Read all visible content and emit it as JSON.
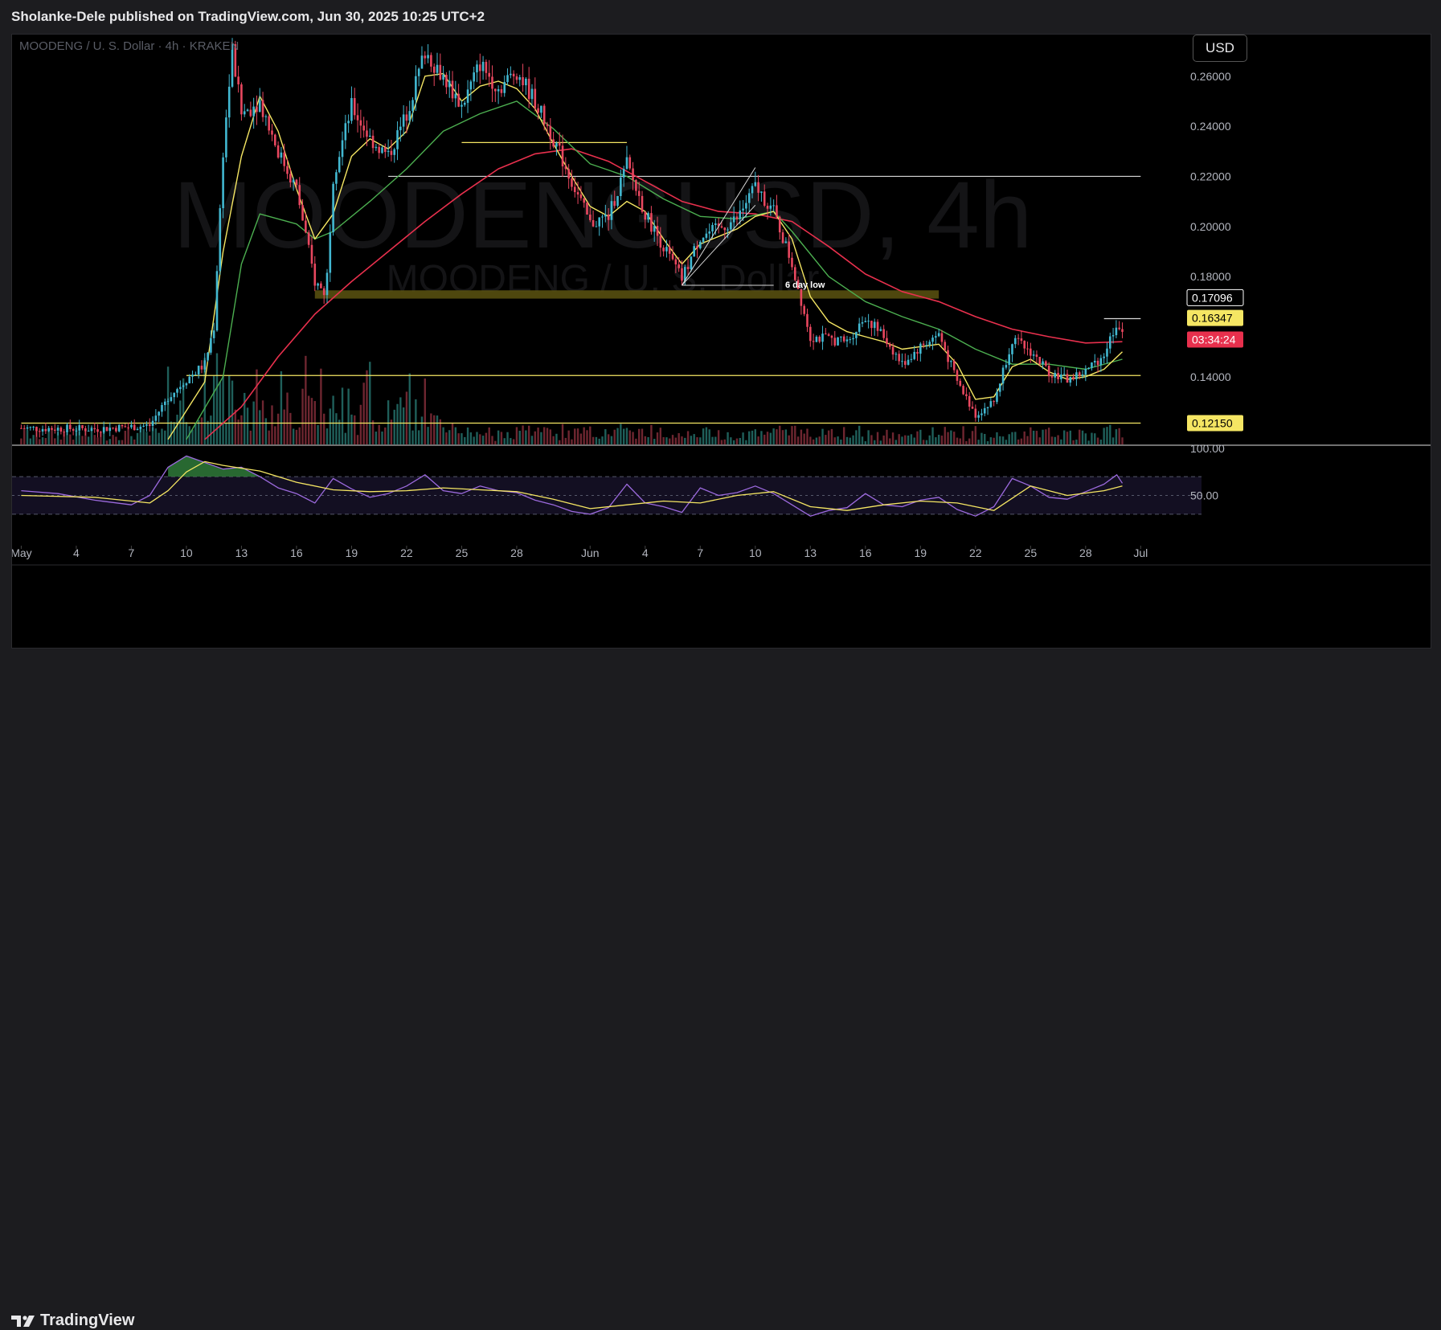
{
  "header": {
    "published_text": "Sholanke-Dele published on TradingView.com, Jun 30, 2025 10:25 UTC+2"
  },
  "footer": {
    "brand": "TradingView"
  },
  "toolbar": {
    "currency_label": "USD"
  },
  "symbol": {
    "title": "MOODENG / U. S. Dollar · 4h · KRAKEN",
    "watermark_main": "MOODENGUSD, 4h",
    "watermark_sub": "MOODENG / U. S. Dollar"
  },
  "colors": {
    "up": "#26a69a",
    "up_body": "#42b8d1",
    "down": "#e8475f",
    "ma_fast": "#f5e663",
    "ma_mid": "#4caf50",
    "ma_slow": "#e8304d",
    "rsi": "#9c6ade",
    "rsi_ma": "#f5e663",
    "level_line": "#f5e663",
    "white_line": "#d8d8d8"
  },
  "chart_data": [
    {
      "type": "candlestick",
      "title": "MOODENG / U. S. Dollar · 4h · KRAKEN",
      "x_start": "2025-05-01",
      "x_end": "2025-06-30",
      "x_ticks": [
        "May",
        "4",
        "7",
        "10",
        "13",
        "16",
        "19",
        "22",
        "25",
        "28",
        "Jun",
        "4",
        "7",
        "10",
        "13",
        "16",
        "19",
        "22",
        "25",
        "28",
        "Jul"
      ],
      "y_ticks": [
        "0.14000",
        "0.18000",
        "0.20000",
        "0.22000",
        "0.24000",
        "0.26000"
      ],
      "ylim": [
        0.113,
        0.275
      ],
      "price_labels": [
        {
          "label": "0.17096",
          "style": "white"
        },
        {
          "label": "0.16347",
          "style": "yellow"
        },
        {
          "label": "03:34:24",
          "style": "red"
        },
        {
          "label": "0.12150",
          "style": "yellow"
        }
      ],
      "horizontal_levels": [
        {
          "value": 0.22,
          "from": "2025-05-21",
          "to": "2025-07-01",
          "color": "white"
        },
        {
          "value": 0.1405,
          "from": "2025-05-10",
          "to": "2025-07-01",
          "color": "yellow"
        },
        {
          "value": 0.1215,
          "from": "2025-05-01",
          "to": "2025-07-01",
          "color": "yellow"
        },
        {
          "value": 0.2335,
          "from": "2025-05-25",
          "to": "2025-06-03",
          "color": "yellow"
        },
        {
          "value": 0.1632,
          "from": "2025-06-29",
          "to": "2025-07-01",
          "color": "white"
        }
      ],
      "zone": {
        "low": 0.1712,
        "high": 0.1745,
        "from": "2025-05-17",
        "to": "2025-06-20"
      },
      "annotations": [
        {
          "text": "6 day low",
          "x": "2025-06-09",
          "y": 0.1755
        }
      ],
      "trendlines": [
        {
          "from": [
            "2025-06-06",
            0.1765
          ],
          "to": [
            "2025-06-10",
            0.2085
          ]
        },
        {
          "from": [
            "2025-06-06",
            0.1765
          ],
          "to": [
            "2025-06-10",
            0.2235
          ]
        },
        {
          "from": [
            "2025-06-06",
            0.1765
          ],
          "to": [
            "2025-06-11",
            0.1765
          ]
        }
      ],
      "close_series": [
        [
          "2025-05-01",
          0.1195
        ],
        [
          "2025-05-05",
          0.1192
        ],
        [
          "2025-05-08",
          0.1205
        ],
        [
          "2025-05-09",
          0.132
        ],
        [
          "2025-05-10",
          0.139
        ],
        [
          "2025-05-11",
          0.145
        ],
        [
          "2025-05-11.5",
          0.16
        ],
        [
          "2025-05-12",
          0.23
        ],
        [
          "2025-05-12.5",
          0.27
        ],
        [
          "2025-05-13",
          0.245
        ],
        [
          "2025-05-14",
          0.25
        ],
        [
          "2025-05-15",
          0.23
        ],
        [
          "2025-05-16",
          0.215
        ],
        [
          "2025-05-17",
          0.178
        ],
        [
          "2025-05-17.6",
          0.173
        ],
        [
          "2025-05-18",
          0.22
        ],
        [
          "2025-05-19",
          0.248
        ],
        [
          "2025-05-20",
          0.235
        ],
        [
          "2025-05-21",
          0.228
        ],
        [
          "2025-05-22",
          0.245
        ],
        [
          "2025-05-23",
          0.27
        ],
        [
          "2025-05-24",
          0.26
        ],
        [
          "2025-05-25",
          0.248
        ],
        [
          "2025-05-26",
          0.265
        ],
        [
          "2025-05-27",
          0.255
        ],
        [
          "2025-05-28",
          0.262
        ],
        [
          "2025-05-29",
          0.25
        ],
        [
          "2025-05-30",
          0.235
        ],
        [
          "2025-05-31",
          0.218
        ],
        [
          "2025-06-01",
          0.201
        ],
        [
          "2025-06-02",
          0.204
        ],
        [
          "2025-06-03",
          0.225
        ],
        [
          "2025-06-04",
          0.205
        ],
        [
          "2025-06-05",
          0.192
        ],
        [
          "2025-06-06",
          0.179
        ],
        [
          "2025-06-07",
          0.196
        ],
        [
          "2025-06-08",
          0.199
        ],
        [
          "2025-06-09",
          0.203
        ],
        [
          "2025-06-10",
          0.216
        ],
        [
          "2025-06-11",
          0.206
        ],
        [
          "2025-06-12",
          0.185
        ],
        [
          "2025-06-13",
          0.156
        ],
        [
          "2025-06-14",
          0.155
        ],
        [
          "2025-06-15",
          0.154
        ],
        [
          "2025-06-16",
          0.164
        ],
        [
          "2025-06-17",
          0.156
        ],
        [
          "2025-06-18",
          0.145
        ],
        [
          "2025-06-19",
          0.152
        ],
        [
          "2025-06-20",
          0.157
        ],
        [
          "2025-06-21",
          0.138
        ],
        [
          "2025-06-22",
          0.125
        ],
        [
          "2025-06-23",
          0.13
        ],
        [
          "2025-06-24",
          0.155
        ],
        [
          "2025-06-25",
          0.15
        ],
        [
          "2025-06-26",
          0.142
        ],
        [
          "2025-06-27",
          0.139
        ],
        [
          "2025-06-28",
          0.142
        ],
        [
          "2025-06-29",
          0.149
        ],
        [
          "2025-06-29.7",
          0.162
        ],
        [
          "2025-06-30",
          0.156
        ]
      ],
      "ma_fast_series": [
        [
          "2025-05-09",
          0.115
        ],
        [
          "2025-05-11",
          0.138
        ],
        [
          "2025-05-12",
          0.19
        ],
        [
          "2025-05-13",
          0.228
        ],
        [
          "2025-05-14",
          0.252
        ],
        [
          "2025-05-15",
          0.238
        ],
        [
          "2025-05-16",
          0.215
        ],
        [
          "2025-05-17",
          0.195
        ],
        [
          "2025-05-18",
          0.205
        ],
        [
          "2025-05-19",
          0.228
        ],
        [
          "2025-05-20",
          0.235
        ],
        [
          "2025-05-21",
          0.231
        ],
        [
          "2025-05-22",
          0.238
        ],
        [
          "2025-05-23",
          0.26
        ],
        [
          "2025-05-24",
          0.261
        ],
        [
          "2025-05-25",
          0.25
        ],
        [
          "2025-05-26",
          0.256
        ],
        [
          "2025-05-27",
          0.258
        ],
        [
          "2025-05-28",
          0.255
        ],
        [
          "2025-05-29",
          0.247
        ],
        [
          "2025-05-30",
          0.233
        ],
        [
          "2025-05-31",
          0.22
        ],
        [
          "2025-06-01",
          0.208
        ],
        [
          "2025-06-02",
          0.204
        ],
        [
          "2025-06-03",
          0.21
        ],
        [
          "2025-06-04",
          0.206
        ],
        [
          "2025-06-05",
          0.195
        ],
        [
          "2025-06-06",
          0.185
        ],
        [
          "2025-06-07",
          0.193
        ],
        [
          "2025-06-08",
          0.196
        ],
        [
          "2025-06-09",
          0.199
        ],
        [
          "2025-06-10",
          0.204
        ],
        [
          "2025-06-11",
          0.206
        ],
        [
          "2025-06-12",
          0.195
        ],
        [
          "2025-06-13",
          0.172
        ],
        [
          "2025-06-14",
          0.162
        ],
        [
          "2025-06-15",
          0.158
        ],
        [
          "2025-06-16",
          0.156
        ],
        [
          "2025-06-17",
          0.154
        ],
        [
          "2025-06-18",
          0.151
        ],
        [
          "2025-06-19",
          0.152
        ],
        [
          "2025-06-20",
          0.153
        ],
        [
          "2025-06-21",
          0.145
        ],
        [
          "2025-06-22",
          0.131
        ],
        [
          "2025-06-23",
          0.132
        ],
        [
          "2025-06-24",
          0.144
        ],
        [
          "2025-06-25",
          0.147
        ],
        [
          "2025-06-26",
          0.142
        ],
        [
          "2025-06-27",
          0.139
        ],
        [
          "2025-06-28",
          0.14
        ],
        [
          "2025-06-29",
          0.143
        ],
        [
          "2025-06-30",
          0.15
        ]
      ],
      "ma_mid_series": [
        [
          "2025-05-10",
          0.115
        ],
        [
          "2025-05-12",
          0.14
        ],
        [
          "2025-05-13",
          0.185
        ],
        [
          "2025-05-14",
          0.205
        ],
        [
          "2025-05-16",
          0.201
        ],
        [
          "2025-05-17",
          0.195
        ],
        [
          "2025-05-18",
          0.198
        ],
        [
          "2025-05-20",
          0.21
        ],
        [
          "2025-05-22",
          0.223
        ],
        [
          "2025-05-24",
          0.238
        ],
        [
          "2025-05-26",
          0.245
        ],
        [
          "2025-05-28",
          0.25
        ],
        [
          "2025-05-30",
          0.239
        ],
        [
          "2025-06-01",
          0.225
        ],
        [
          "2025-06-03",
          0.22
        ],
        [
          "2025-06-05",
          0.211
        ],
        [
          "2025-06-07",
          0.204
        ],
        [
          "2025-06-09",
          0.203
        ],
        [
          "2025-06-11",
          0.206
        ],
        [
          "2025-06-12",
          0.198
        ],
        [
          "2025-06-14",
          0.18
        ],
        [
          "2025-06-16",
          0.17
        ],
        [
          "2025-06-18",
          0.164
        ],
        [
          "2025-06-20",
          0.159
        ],
        [
          "2025-06-22",
          0.151
        ],
        [
          "2025-06-24",
          0.145
        ],
        [
          "2025-06-26",
          0.145
        ],
        [
          "2025-06-28",
          0.143
        ],
        [
          "2025-06-30",
          0.147
        ]
      ],
      "ma_slow_series": [
        [
          "2025-05-11",
          0.115
        ],
        [
          "2025-05-13",
          0.128
        ],
        [
          "2025-05-15",
          0.148
        ],
        [
          "2025-05-17",
          0.165
        ],
        [
          "2025-05-19",
          0.178
        ],
        [
          "2025-05-21",
          0.19
        ],
        [
          "2025-05-23",
          0.202
        ],
        [
          "2025-05-25",
          0.213
        ],
        [
          "2025-05-27",
          0.223
        ],
        [
          "2025-05-29",
          0.229
        ],
        [
          "2025-05-31",
          0.231
        ],
        [
          "2025-06-02",
          0.226
        ],
        [
          "2025-06-04",
          0.218
        ],
        [
          "2025-06-06",
          0.21
        ],
        [
          "2025-06-08",
          0.206
        ],
        [
          "2025-06-10",
          0.205
        ],
        [
          "2025-06-12",
          0.202
        ],
        [
          "2025-06-14",
          0.192
        ],
        [
          "2025-06-16",
          0.181
        ],
        [
          "2025-06-18",
          0.174
        ],
        [
          "2025-06-20",
          0.17
        ],
        [
          "2025-06-22",
          0.164
        ],
        [
          "2025-06-24",
          0.159
        ],
        [
          "2025-06-26",
          0.156
        ],
        [
          "2025-06-28",
          0.1535
        ],
        [
          "2025-06-30",
          0.154
        ]
      ]
    },
    {
      "type": "line",
      "title": "RSI",
      "y_ticks": [
        "100.00",
        "50.00"
      ],
      "ylim": [
        0,
        100
      ],
      "bands": [
        30,
        70
      ],
      "rsi_series": [
        [
          "2025-05-01",
          55
        ],
        [
          "2025-05-03",
          52
        ],
        [
          "2025-05-05",
          45
        ],
        [
          "2025-05-07",
          40
        ],
        [
          "2025-05-08",
          50
        ],
        [
          "2025-05-09",
          80
        ],
        [
          "2025-05-10",
          92
        ],
        [
          "2025-05-11",
          85
        ],
        [
          "2025-05-12",
          78
        ],
        [
          "2025-05-13",
          80
        ],
        [
          "2025-05-14",
          70
        ],
        [
          "2025-05-15",
          58
        ],
        [
          "2025-05-16",
          52
        ],
        [
          "2025-05-17",
          42
        ],
        [
          "2025-05-18",
          68
        ],
        [
          "2025-05-19",
          57
        ],
        [
          "2025-05-20",
          48
        ],
        [
          "2025-05-21",
          52
        ],
        [
          "2025-05-22",
          60
        ],
        [
          "2025-05-23",
          72
        ],
        [
          "2025-05-24",
          55
        ],
        [
          "2025-05-25",
          52
        ],
        [
          "2025-05-26",
          60
        ],
        [
          "2025-05-27",
          55
        ],
        [
          "2025-05-28",
          53
        ],
        [
          "2025-05-29",
          45
        ],
        [
          "2025-05-30",
          40
        ],
        [
          "2025-05-31",
          33
        ],
        [
          "2025-06-01",
          30
        ],
        [
          "2025-06-02",
          37
        ],
        [
          "2025-06-03",
          62
        ],
        [
          "2025-06-04",
          42
        ],
        [
          "2025-06-05",
          38
        ],
        [
          "2025-06-06",
          32
        ],
        [
          "2025-06-07",
          58
        ],
        [
          "2025-06-08",
          50
        ],
        [
          "2025-06-09",
          53
        ],
        [
          "2025-06-10",
          60
        ],
        [
          "2025-06-11",
          52
        ],
        [
          "2025-06-12",
          40
        ],
        [
          "2025-06-13",
          28
        ],
        [
          "2025-06-14",
          34
        ],
        [
          "2025-06-15",
          37
        ],
        [
          "2025-06-16",
          52
        ],
        [
          "2025-06-17",
          40
        ],
        [
          "2025-06-18",
          38
        ],
        [
          "2025-06-19",
          45
        ],
        [
          "2025-06-20",
          48
        ],
        [
          "2025-06-21",
          35
        ],
        [
          "2025-06-22",
          28
        ],
        [
          "2025-06-23",
          38
        ],
        [
          "2025-06-24",
          68
        ],
        [
          "2025-06-25",
          60
        ],
        [
          "2025-06-26",
          48
        ],
        [
          "2025-06-27",
          46
        ],
        [
          "2025-06-28",
          54
        ],
        [
          "2025-06-29",
          62
        ],
        [
          "2025-06-29.7",
          72
        ],
        [
          "2025-06-30",
          63
        ]
      ],
      "rsi_ma_series": [
        [
          "2025-05-01",
          50
        ],
        [
          "2025-05-05",
          48
        ],
        [
          "2025-05-08",
          42
        ],
        [
          "2025-05-09",
          55
        ],
        [
          "2025-05-10",
          75
        ],
        [
          "2025-05-11",
          86
        ],
        [
          "2025-05-12",
          82
        ],
        [
          "2025-05-14",
          76
        ],
        [
          "2025-05-16",
          64
        ],
        [
          "2025-05-18",
          56
        ],
        [
          "2025-05-20",
          54
        ],
        [
          "2025-05-22",
          55
        ],
        [
          "2025-05-24",
          58
        ],
        [
          "2025-05-26",
          56
        ],
        [
          "2025-05-28",
          54
        ],
        [
          "2025-05-30",
          46
        ],
        [
          "2025-06-01",
          36
        ],
        [
          "2025-06-03",
          40
        ],
        [
          "2025-06-05",
          44
        ],
        [
          "2025-06-07",
          42
        ],
        [
          "2025-06-09",
          50
        ],
        [
          "2025-06-11",
          54
        ],
        [
          "2025-06-13",
          38
        ],
        [
          "2025-06-15",
          34
        ],
        [
          "2025-06-17",
          40
        ],
        [
          "2025-06-19",
          44
        ],
        [
          "2025-06-21",
          42
        ],
        [
          "2025-06-23",
          34
        ],
        [
          "2025-06-25",
          60
        ],
        [
          "2025-06-27",
          50
        ],
        [
          "2025-06-29",
          55
        ],
        [
          "2025-06-30",
          60
        ]
      ]
    }
  ]
}
